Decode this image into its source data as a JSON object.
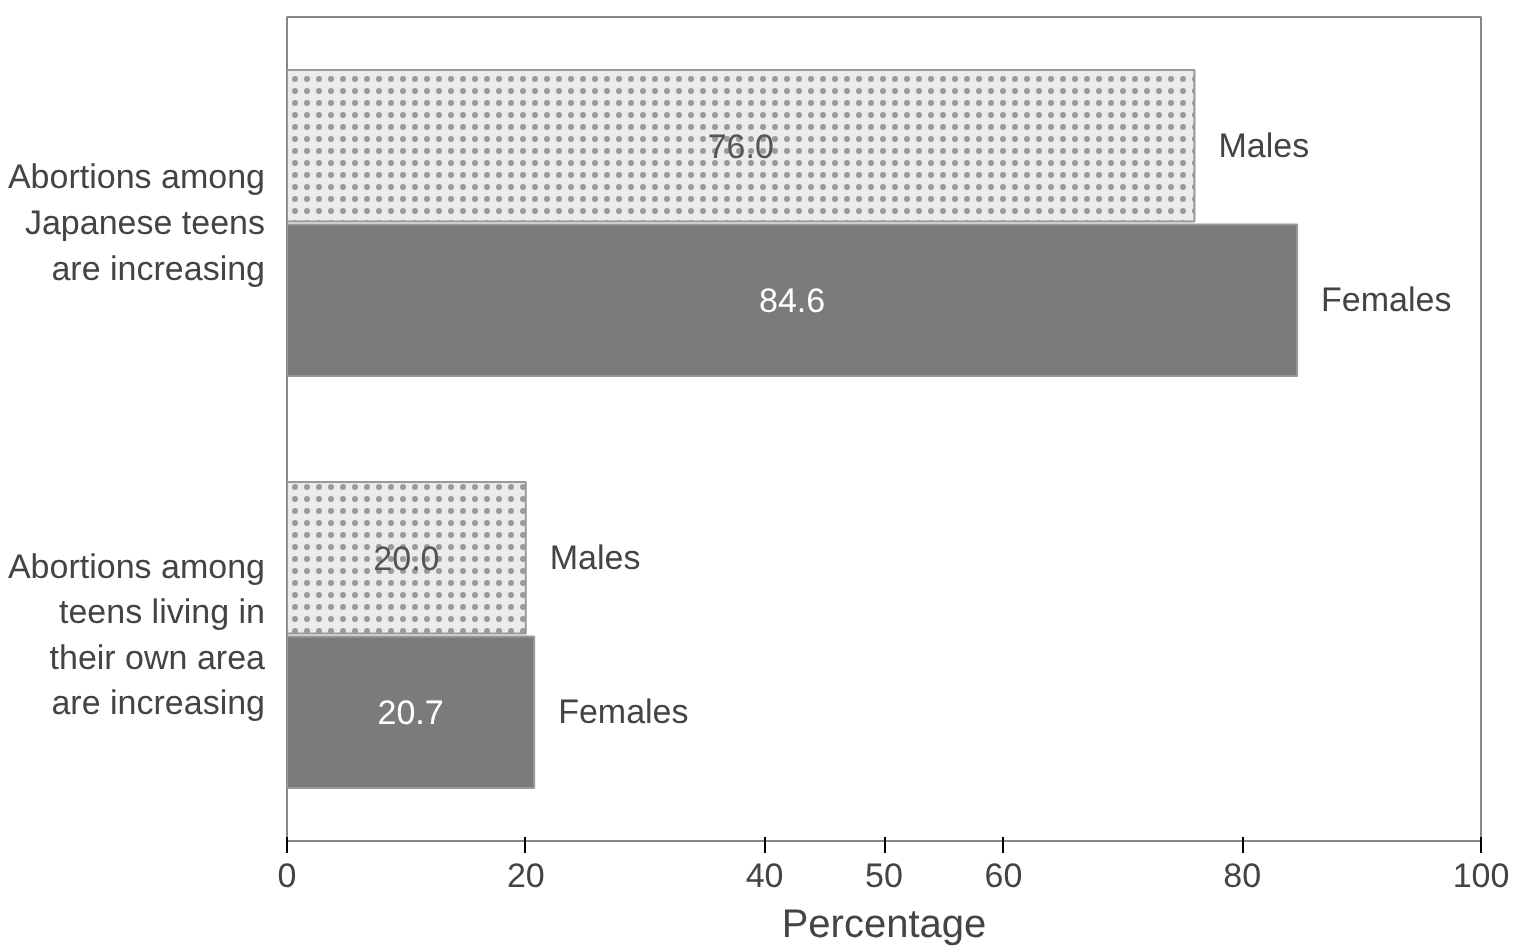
{
  "chart_data": {
    "type": "bar",
    "orientation": "horizontal",
    "xlabel": "Percentage",
    "categories": [
      "Abortions among Japanese teens are increasing",
      "Abortions among teens living in their own area are increasing"
    ],
    "series": [
      {
        "name": "Males",
        "color": "#ebebeb",
        "values": [
          76.0,
          20.0
        ],
        "value_labels": [
          "76.0",
          "20.0"
        ]
      },
      {
        "name": "Females",
        "color": "#7b7b7b",
        "values": [
          84.6,
          20.7
        ],
        "value_labels": [
          "84.6",
          "20.7"
        ]
      }
    ],
    "xlim": [
      0,
      100
    ],
    "xticks": [
      0,
      20,
      40,
      50,
      60,
      80,
      100
    ],
    "grid": false,
    "legend": false
  }
}
